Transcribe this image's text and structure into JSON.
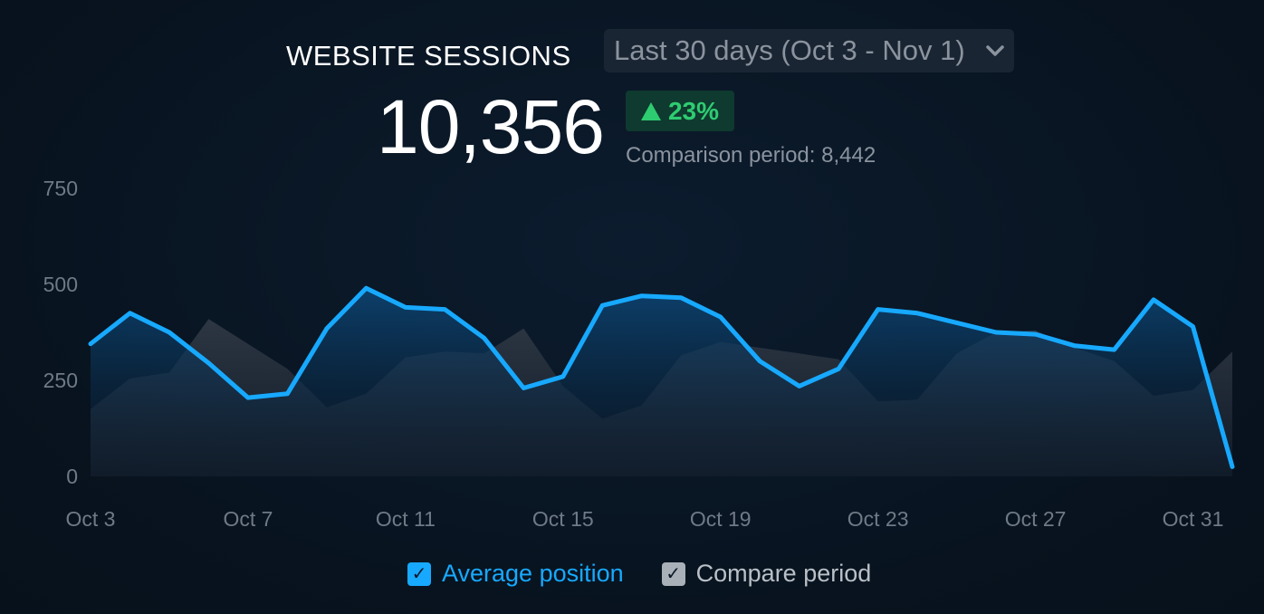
{
  "header": {
    "title": "WEBSITE SESSIONS",
    "date_range": "Last 30 days (Oct 3 - Nov 1)",
    "total": "10,356",
    "change": "23%",
    "comparison_label": "Comparison period:",
    "comparison_value": "8,442"
  },
  "colors": {
    "primary_line": "#17a9ff",
    "compare_area": "#2a323d",
    "positive": "#2ecc71"
  },
  "icons": {
    "dropdown": "chevron-down-icon",
    "trend": "triangle-up-icon",
    "check": "check-icon"
  },
  "legend": {
    "primary": "Average position",
    "compare": "Compare period",
    "check_mark": "✓"
  },
  "chart_data": {
    "type": "line",
    "x": [
      "Oct 3",
      "Oct 4",
      "Oct 5",
      "Oct 6",
      "Oct 7",
      "Oct 8",
      "Oct 9",
      "Oct 10",
      "Oct 11",
      "Oct 12",
      "Oct 13",
      "Oct 14",
      "Oct 15",
      "Oct 16",
      "Oct 17",
      "Oct 18",
      "Oct 19",
      "Oct 20",
      "Oct 21",
      "Oct 22",
      "Oct 23",
      "Oct 24",
      "Oct 25",
      "Oct 26",
      "Oct 27",
      "Oct 28",
      "Oct 29",
      "Oct 30",
      "Oct 31",
      "Nov 1"
    ],
    "x_ticks": [
      "Oct 3",
      "Oct 7",
      "Oct 11",
      "Oct 15",
      "Oct 19",
      "Oct 23",
      "Oct 27",
      "Oct 31"
    ],
    "y_ticks": [
      0,
      250,
      500,
      750
    ],
    "ylim": [
      0,
      750
    ],
    "series": [
      {
        "name": "Average position",
        "values": [
          345,
          425,
          375,
          295,
          205,
          215,
          385,
          490,
          440,
          435,
          360,
          230,
          260,
          445,
          470,
          465,
          415,
          300,
          235,
          280,
          435,
          425,
          400,
          375,
          370,
          340,
          330,
          460,
          390,
          25
        ]
      },
      {
        "name": "Compare period",
        "values": [
          175,
          255,
          270,
          410,
          345,
          280,
          180,
          215,
          310,
          325,
          320,
          385,
          235,
          150,
          185,
          315,
          350,
          335,
          320,
          305,
          195,
          200,
          320,
          375,
          380,
          335,
          300,
          210,
          225,
          325
        ]
      }
    ],
    "grid": false,
    "legend_position": "bottom-center"
  }
}
